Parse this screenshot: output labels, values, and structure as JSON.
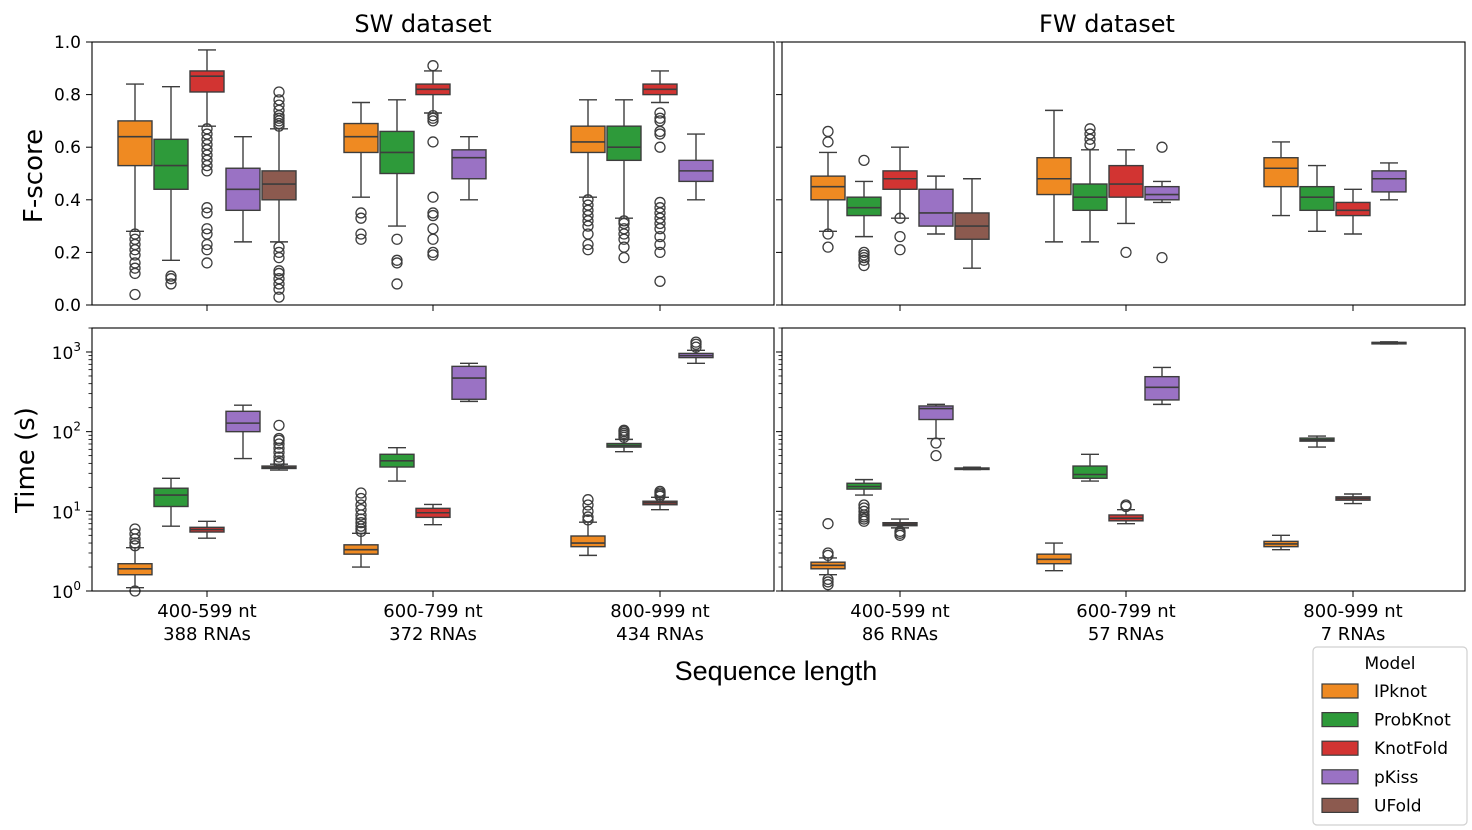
{
  "figure": {
    "xlabel": "Sequence length",
    "categories": [
      "400-599 nt",
      "600-799 nt",
      "800-999 nt"
    ],
    "fscore_yticks": [
      "0.0",
      "0.2",
      "0.4",
      "0.6",
      "0.8",
      "1.0"
    ],
    "time_yticks": [
      {
        "base": "10",
        "exp": "0"
      },
      {
        "base": "10",
        "exp": "1"
      },
      {
        "base": "10",
        "exp": "2"
      },
      {
        "base": "10",
        "exp": "3"
      }
    ],
    "legend": {
      "title": "Model",
      "placement": "lower-right, outside plot",
      "items": [
        {
          "name": "IPknot",
          "color": "#ef8a22"
        },
        {
          "name": "ProbKnot",
          "color": "#2e9a3a"
        },
        {
          "name": "KnotFold",
          "color": "#d23432"
        },
        {
          "name": "pKiss",
          "color": "#9a72c4"
        },
        {
          "name": "UFold",
          "color": "#8c5a4f"
        }
      ]
    }
  },
  "chart_data": [
    {
      "type": "box",
      "title": "SW dataset",
      "ylabel": "F-score",
      "xlabel": "",
      "ylim": [
        0,
        1
      ],
      "yscale": "linear",
      "categories": [
        "400-599 nt",
        "600-799 nt",
        "800-999 nt"
      ],
      "category_counts": [
        "388 RNAs",
        "372 RNAs",
        "434 RNAs"
      ],
      "series": [
        {
          "name": "IPknot",
          "boxes": [
            {
              "whislo": 0.28,
              "q1": 0.53,
              "med": 0.64,
              "q3": 0.7,
              "whishi": 0.84,
              "fliers": [
                0.04,
                0.12,
                0.14,
                0.16,
                0.19,
                0.21,
                0.23,
                0.25,
                0.27
              ]
            },
            {
              "whislo": 0.41,
              "q1": 0.58,
              "med": 0.64,
              "q3": 0.69,
              "whishi": 0.77,
              "fliers": [
                0.25,
                0.27,
                0.33,
                0.35
              ]
            },
            {
              "whislo": 0.41,
              "q1": 0.58,
              "med": 0.62,
              "q3": 0.68,
              "whishi": 0.78,
              "fliers": [
                0.21,
                0.23,
                0.27,
                0.3,
                0.32,
                0.34,
                0.36,
                0.38,
                0.4
              ]
            }
          ]
        },
        {
          "name": "ProbKnot",
          "boxes": [
            {
              "whislo": 0.17,
              "q1": 0.44,
              "med": 0.53,
              "q3": 0.63,
              "whishi": 0.83,
              "fliers": [
                0.08,
                0.1,
                0.11
              ]
            },
            {
              "whislo": 0.3,
              "q1": 0.5,
              "med": 0.58,
              "q3": 0.66,
              "whishi": 0.78,
              "fliers": [
                0.08,
                0.16,
                0.17,
                0.25
              ]
            },
            {
              "whislo": 0.33,
              "q1": 0.55,
              "med": 0.6,
              "q3": 0.68,
              "whishi": 0.78,
              "fliers": [
                0.18,
                0.22,
                0.25,
                0.27,
                0.29,
                0.31,
                0.32
              ]
            }
          ]
        },
        {
          "name": "KnotFold",
          "boxes": [
            {
              "whislo": 0.68,
              "q1": 0.81,
              "med": 0.87,
              "q3": 0.89,
              "whishi": 0.97,
              "fliers": [
                0.16,
                0.21,
                0.23,
                0.27,
                0.29,
                0.35,
                0.37,
                0.51,
                0.53,
                0.55,
                0.57,
                0.59,
                0.61,
                0.63,
                0.65,
                0.67
              ]
            },
            {
              "whislo": 0.73,
              "q1": 0.8,
              "med": 0.82,
              "q3": 0.84,
              "whishi": 0.89,
              "fliers": [
                0.19,
                0.2,
                0.25,
                0.29,
                0.34,
                0.35,
                0.41,
                0.62,
                0.7,
                0.71,
                0.72,
                0.91
              ]
            },
            {
              "whislo": 0.77,
              "q1": 0.8,
              "med": 0.82,
              "q3": 0.84,
              "whishi": 0.89,
              "fliers": [
                0.09,
                0.2,
                0.23,
                0.26,
                0.29,
                0.31,
                0.33,
                0.35,
                0.37,
                0.39,
                0.6,
                0.65,
                0.66,
                0.7,
                0.71,
                0.73
              ]
            }
          ]
        },
        {
          "name": "pKiss",
          "boxes": [
            {
              "whislo": 0.24,
              "q1": 0.36,
              "med": 0.44,
              "q3": 0.52,
              "whishi": 0.64,
              "fliers": []
            },
            {
              "whislo": 0.4,
              "q1": 0.48,
              "med": 0.56,
              "q3": 0.59,
              "whishi": 0.64,
              "fliers": []
            },
            {
              "whislo": 0.4,
              "q1": 0.47,
              "med": 0.51,
              "q3": 0.55,
              "whishi": 0.65,
              "fliers": []
            }
          ]
        },
        {
          "name": "UFold",
          "boxes": [
            {
              "whislo": 0.24,
              "q1": 0.4,
              "med": 0.46,
              "q3": 0.51,
              "whishi": 0.67,
              "fliers": [
                0.03,
                0.06,
                0.08,
                0.1,
                0.12,
                0.13,
                0.18,
                0.2,
                0.22,
                0.68,
                0.69,
                0.7,
                0.71,
                0.72,
                0.74,
                0.76,
                0.78,
                0.81
              ]
            },
            null,
            null
          ]
        }
      ]
    },
    {
      "type": "box",
      "title": "FW dataset",
      "ylabel": "",
      "xlabel": "",
      "ylim": [
        0,
        1
      ],
      "yscale": "linear",
      "categories": [
        "400-599 nt",
        "600-799 nt",
        "800-999 nt"
      ],
      "category_counts": [
        "86 RNAs",
        "57 RNAs",
        "7 RNAs"
      ],
      "series": [
        {
          "name": "IPknot",
          "boxes": [
            {
              "whislo": 0.28,
              "q1": 0.4,
              "med": 0.45,
              "q3": 0.49,
              "whishi": 0.58,
              "fliers": [
                0.22,
                0.27,
                0.62,
                0.66
              ]
            },
            {
              "whislo": 0.24,
              "q1": 0.42,
              "med": 0.48,
              "q3": 0.56,
              "whishi": 0.74,
              "fliers": []
            },
            {
              "whislo": 0.34,
              "q1": 0.45,
              "med": 0.52,
              "q3": 0.56,
              "whishi": 0.62,
              "fliers": []
            }
          ]
        },
        {
          "name": "ProbKnot",
          "boxes": [
            {
              "whislo": 0.26,
              "q1": 0.34,
              "med": 0.37,
              "q3": 0.41,
              "whishi": 0.47,
              "fliers": [
                0.15,
                0.17,
                0.18,
                0.19,
                0.2,
                0.55
              ]
            },
            {
              "whislo": 0.24,
              "q1": 0.36,
              "med": 0.41,
              "q3": 0.46,
              "whishi": 0.59,
              "fliers": [
                0.61,
                0.63,
                0.65,
                0.67
              ]
            },
            {
              "whislo": 0.28,
              "q1": 0.36,
              "med": 0.41,
              "q3": 0.45,
              "whishi": 0.53,
              "fliers": []
            }
          ]
        },
        {
          "name": "KnotFold",
          "boxes": [
            {
              "whislo": 0.33,
              "q1": 0.44,
              "med": 0.48,
              "q3": 0.51,
              "whishi": 0.6,
              "fliers": [
                0.21,
                0.26,
                0.33
              ]
            },
            {
              "whislo": 0.31,
              "q1": 0.41,
              "med": 0.46,
              "q3": 0.53,
              "whishi": 0.59,
              "fliers": [
                0.2
              ]
            },
            {
              "whislo": 0.27,
              "q1": 0.34,
              "med": 0.36,
              "q3": 0.39,
              "whishi": 0.44,
              "fliers": []
            }
          ]
        },
        {
          "name": "pKiss",
          "boxes": [
            {
              "whislo": 0.27,
              "q1": 0.3,
              "med": 0.35,
              "q3": 0.44,
              "whishi": 0.49,
              "fliers": []
            },
            {
              "whislo": 0.39,
              "q1": 0.4,
              "med": 0.42,
              "q3": 0.45,
              "whishi": 0.47,
              "fliers": [
                0.18,
                0.6
              ]
            },
            {
              "whislo": 0.4,
              "q1": 0.43,
              "med": 0.48,
              "q3": 0.51,
              "whishi": 0.54,
              "fliers": []
            }
          ]
        },
        {
          "name": "UFold",
          "boxes": [
            {
              "whislo": 0.14,
              "q1": 0.25,
              "med": 0.3,
              "q3": 0.35,
              "whishi": 0.48,
              "fliers": []
            },
            null,
            null
          ]
        }
      ]
    },
    {
      "type": "box",
      "title": "",
      "ylabel": "Time (s)",
      "xlabel": "Sequence length",
      "ylim": [
        1,
        2000
      ],
      "yscale": "log",
      "categories": [
        "400-599 nt",
        "600-799 nt",
        "800-999 nt"
      ],
      "category_counts": [
        "388 RNAs",
        "372 RNAs",
        "434 RNAs"
      ],
      "series": [
        {
          "name": "IPknot",
          "boxes": [
            {
              "whislo": 1.1,
              "q1": 1.6,
              "med": 1.9,
              "q3": 2.2,
              "whishi": 3.5,
              "fliers": [
                1.0,
                3.7,
                4.0,
                4.5,
                5.2,
                6.0
              ]
            },
            {
              "whislo": 2.0,
              "q1": 2.9,
              "med": 3.3,
              "q3": 3.8,
              "whishi": 5.3,
              "fliers": [
                5.6,
                6.0,
                6.5,
                7.2,
                8.0,
                9.0,
                10.5,
                12.0,
                14.5,
                17.0
              ]
            },
            {
              "whislo": 2.8,
              "q1": 3.6,
              "med": 4.0,
              "q3": 4.9,
              "whishi": 7.3,
              "fliers": [
                7.8,
                8.5,
                10.0,
                12.0,
                14.0
              ]
            }
          ]
        },
        {
          "name": "ProbKnot",
          "boxes": [
            {
              "whislo": 6.5,
              "q1": 11.5,
              "med": 16.0,
              "q3": 19.5,
              "whishi": 26.0,
              "fliers": []
            },
            {
              "whislo": 24.0,
              "q1": 36.0,
              "med": 43.0,
              "q3": 52.0,
              "whishi": 63.0,
              "fliers": []
            },
            {
              "whislo": 56.0,
              "q1": 64.0,
              "med": 67.0,
              "q3": 71.0,
              "whishi": 80.0,
              "fliers": [
                85.0,
                90.0,
                95.0,
                100.0,
                104.0
              ]
            }
          ]
        },
        {
          "name": "KnotFold",
          "boxes": [
            {
              "whislo": 4.6,
              "q1": 5.5,
              "med": 5.9,
              "q3": 6.3,
              "whishi": 7.5,
              "fliers": []
            },
            {
              "whislo": 6.8,
              "q1": 8.4,
              "med": 9.6,
              "q3": 10.9,
              "whishi": 12.2,
              "fliers": []
            },
            {
              "whislo": 10.5,
              "q1": 12.1,
              "med": 12.8,
              "q3": 13.4,
              "whishi": 15.0,
              "fliers": [
                15.5,
                16.2,
                17.0,
                17.8
              ]
            }
          ]
        },
        {
          "name": "pKiss",
          "boxes": [
            {
              "whislo": 46.0,
              "q1": 100.0,
              "med": 128.0,
              "q3": 180.0,
              "whishi": 215.0,
              "fliers": []
            },
            {
              "whislo": 240.0,
              "q1": 255.0,
              "med": 470.0,
              "q3": 660.0,
              "whishi": 720.0,
              "fliers": []
            },
            {
              "whislo": 720.0,
              "q1": 850.0,
              "med": 900.0,
              "q3": 960.0,
              "whishi": 1050.0,
              "fliers": [
                1150.0,
                1250.0,
                1330.0
              ]
            }
          ]
        },
        {
          "name": "UFold",
          "boxes": [
            {
              "whislo": 33.0,
              "q1": 34.5,
              "med": 35.5,
              "q3": 37.0,
              "whishi": 39.0,
              "fliers": [
                40.0,
                43.0,
                48.0,
                55.0,
                62.0,
                70.0,
                78.0,
                82.0,
                120.0
              ]
            },
            null,
            null
          ]
        }
      ]
    },
    {
      "type": "box",
      "title": "",
      "ylabel": "",
      "xlabel": "Sequence length",
      "ylim": [
        1,
        2000
      ],
      "yscale": "log",
      "categories": [
        "400-599 nt",
        "600-799 nt",
        "800-999 nt"
      ],
      "category_counts": [
        "86 RNAs",
        "57 RNAs",
        "7 RNAs"
      ],
      "series": [
        {
          "name": "IPknot",
          "boxes": [
            {
              "whislo": 1.6,
              "q1": 1.9,
              "med": 2.1,
              "q3": 2.3,
              "whishi": 2.6,
              "fliers": [
                1.2,
                1.3,
                1.4,
                2.8,
                3.0,
                7.0
              ]
            },
            {
              "whislo": 1.8,
              "q1": 2.2,
              "med": 2.5,
              "q3": 2.9,
              "whishi": 4.0,
              "fliers": []
            },
            {
              "whislo": 3.3,
              "q1": 3.6,
              "med": 3.9,
              "q3": 4.2,
              "whishi": 5.0,
              "fliers": []
            }
          ]
        },
        {
          "name": "ProbKnot",
          "boxes": [
            {
              "whislo": 16.0,
              "q1": 19.0,
              "med": 20.5,
              "q3": 22.5,
              "whishi": 25.0,
              "fliers": [
                7.5,
                8.0,
                8.5,
                9.0,
                10.0,
                11.0,
                12.0
              ]
            },
            {
              "whislo": 24.0,
              "q1": 26.0,
              "med": 29.0,
              "q3": 37.0,
              "whishi": 52.0,
              "fliers": []
            },
            {
              "whislo": 64.0,
              "q1": 76.0,
              "med": 79.0,
              "q3": 83.0,
              "whishi": 88.0,
              "fliers": []
            }
          ]
        },
        {
          "name": "KnotFold",
          "boxes": [
            {
              "whislo": 6.2,
              "q1": 6.6,
              "med": 6.9,
              "q3": 7.2,
              "whishi": 8.0,
              "fliers": [
                5.0,
                5.3,
                5.6
              ]
            },
            {
              "whislo": 7.0,
              "q1": 7.6,
              "med": 8.2,
              "q3": 9.0,
              "whishi": 10.5,
              "fliers": [
                11.5,
                12.0
              ]
            },
            {
              "whislo": 12.5,
              "q1": 13.8,
              "med": 14.5,
              "q3": 15.2,
              "whishi": 16.5,
              "fliers": []
            }
          ]
        },
        {
          "name": "pKiss",
          "boxes": [
            {
              "whislo": 82.0,
              "q1": 142.0,
              "med": 195.0,
              "q3": 210.0,
              "whishi": 220.0,
              "fliers": [
                50.0,
                72.0
              ]
            },
            {
              "whislo": 220.0,
              "q1": 250.0,
              "med": 360.0,
              "q3": 490.0,
              "whishi": 640.0,
              "fliers": []
            },
            {
              "whislo": 1260.0,
              "q1": 1290.0,
              "med": 1310.0,
              "q3": 1320.0,
              "whishi": 1340.0,
              "fliers": []
            }
          ]
        },
        {
          "name": "UFold",
          "boxes": [
            {
              "whislo": 33.5,
              "q1": 34.0,
              "med": 34.5,
              "q3": 35.0,
              "whishi": 35.8,
              "fliers": []
            },
            null,
            null
          ]
        }
      ]
    }
  ]
}
